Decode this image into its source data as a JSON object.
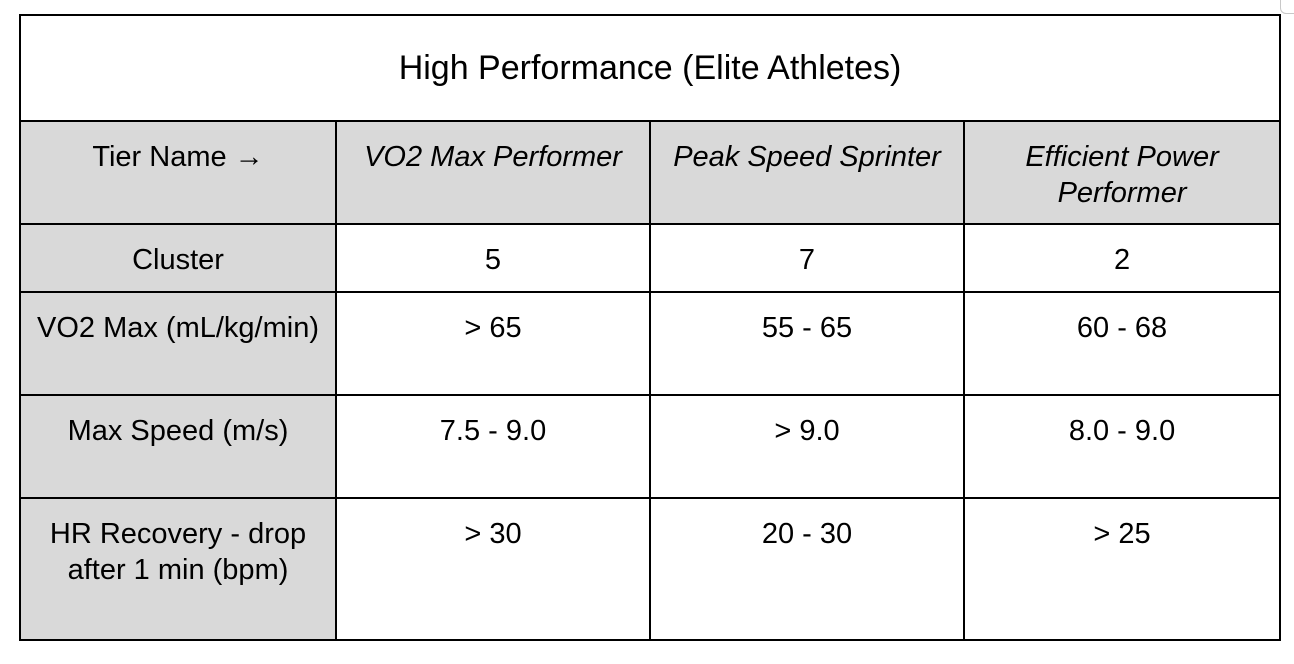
{
  "table": {
    "title": "High Performance (Elite Athletes)",
    "header_label": "Tier Name →",
    "tiers": [
      "VO2 Max Performer",
      "Peak Speed Sprinter",
      "Efficient Power Performer"
    ],
    "rows": [
      {
        "label": "Cluster",
        "values": [
          "5",
          "7",
          "2"
        ]
      },
      {
        "label": "VO2 Max (mL/kg/min)",
        "values": [
          "> 65",
          "55 - 65",
          "60 - 68"
        ]
      },
      {
        "label": "Max Speed (m/s)",
        "values": [
          "7.5 - 9.0",
          "> 9.0",
          "8.0 - 9.0"
        ]
      },
      {
        "label": "HR Recovery - drop after 1 min (bpm)",
        "values": [
          "> 30",
          "20 - 30",
          "> 25"
        ]
      }
    ]
  },
  "colors": {
    "label_background": "#d9d9d9",
    "border": "#000000",
    "background": "#ffffff"
  }
}
